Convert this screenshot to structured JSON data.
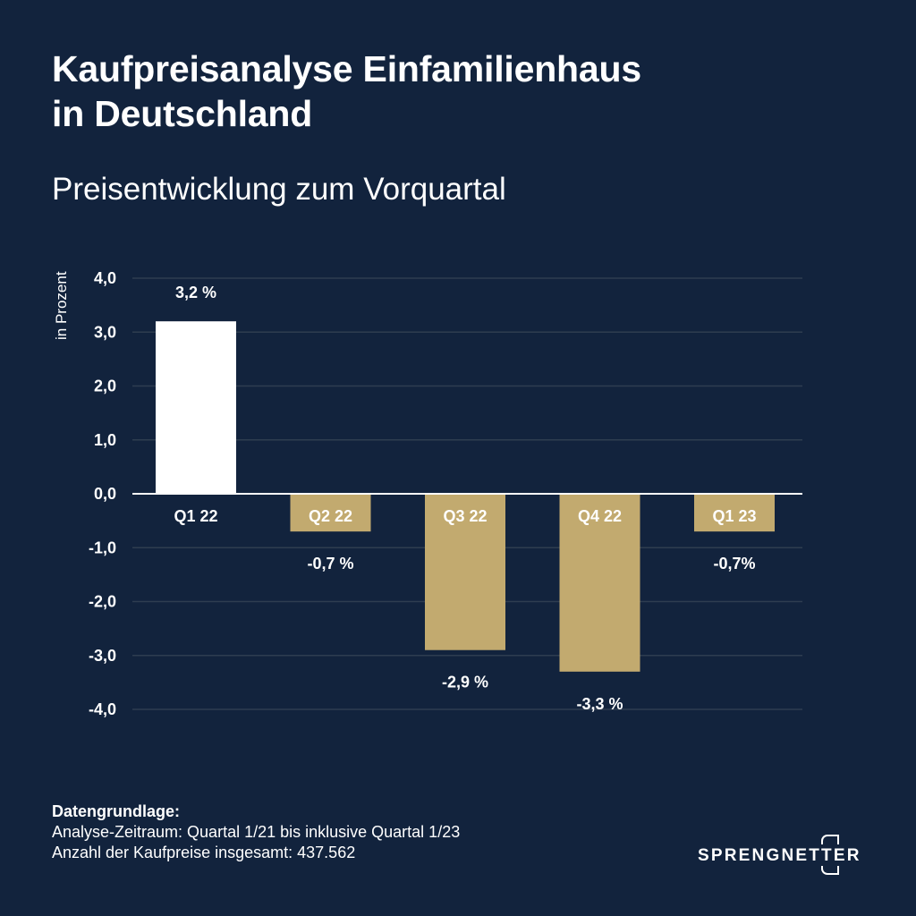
{
  "header": {
    "title_line1": "Kaufpreisanalyse Einfamilienhaus",
    "title_line2": "in Deutschland",
    "subtitle": "Preisentwicklung zum Vorquartal"
  },
  "chart_data": {
    "type": "bar",
    "title": "Kaufpreisanalyse Einfamilienhaus in Deutschland",
    "subtitle": "Preisentwicklung zum Vorquartal",
    "xlabel": "",
    "ylabel": "in Prozent",
    "categories": [
      "Q1 22",
      "Q2 22",
      "Q3 22",
      "Q4 22",
      "Q1 23"
    ],
    "values": [
      3.2,
      -0.7,
      -2.9,
      -3.3,
      -0.7
    ],
    "value_labels": [
      "3,2 %",
      "-0,7 %",
      "-2,9 %",
      "-3,3 %",
      "-0,7%"
    ],
    "ylim": [
      -4,
      4
    ],
    "yticks": [
      4,
      3,
      2,
      1,
      0,
      -1,
      -2,
      -3,
      -4
    ],
    "ytick_labels": [
      "4,0",
      "3,0",
      "2,0",
      "1,0",
      "0,0",
      "-1,0",
      "-2,0",
      "-3,0",
      "-4,0"
    ],
    "grid": true,
    "legend": "none",
    "colors": {
      "positive": "#ffffff",
      "negative": "#c2aa6f",
      "background": "#12233d",
      "grid": "#2e3d50",
      "zero_line": "#ffffff"
    }
  },
  "footer": {
    "heading": "Datengrundlage:",
    "line1": "Analyse-Zeitraum: Quartal 1/21 bis inklusive Quartal 1/23",
    "line2": "Anzahl der Kaufpreise insgesamt: 437.562"
  },
  "brand": {
    "name": "SPRENGNETTER",
    "icon": "bracket-logo-icon"
  }
}
